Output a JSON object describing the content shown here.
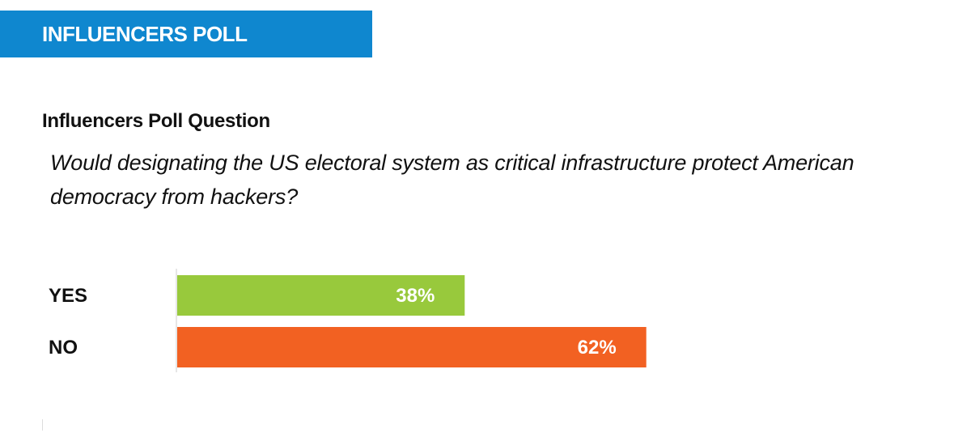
{
  "banner": {
    "title": "INFLUENCERS POLL",
    "color": "#0f87cf"
  },
  "question": {
    "heading": "Influencers Poll Question",
    "text": "Would designating the US electoral system as critical infrastructure protect American democracy from hackers?"
  },
  "chart_data": {
    "type": "bar",
    "orientation": "horizontal",
    "categories": [
      "YES",
      "NO"
    ],
    "values": [
      38,
      62
    ],
    "value_labels": [
      "38%",
      "62%"
    ],
    "colors": [
      "#98c93c",
      "#f26122"
    ],
    "xlim": [
      0,
      100
    ],
    "grid": false,
    "legend": "none"
  }
}
